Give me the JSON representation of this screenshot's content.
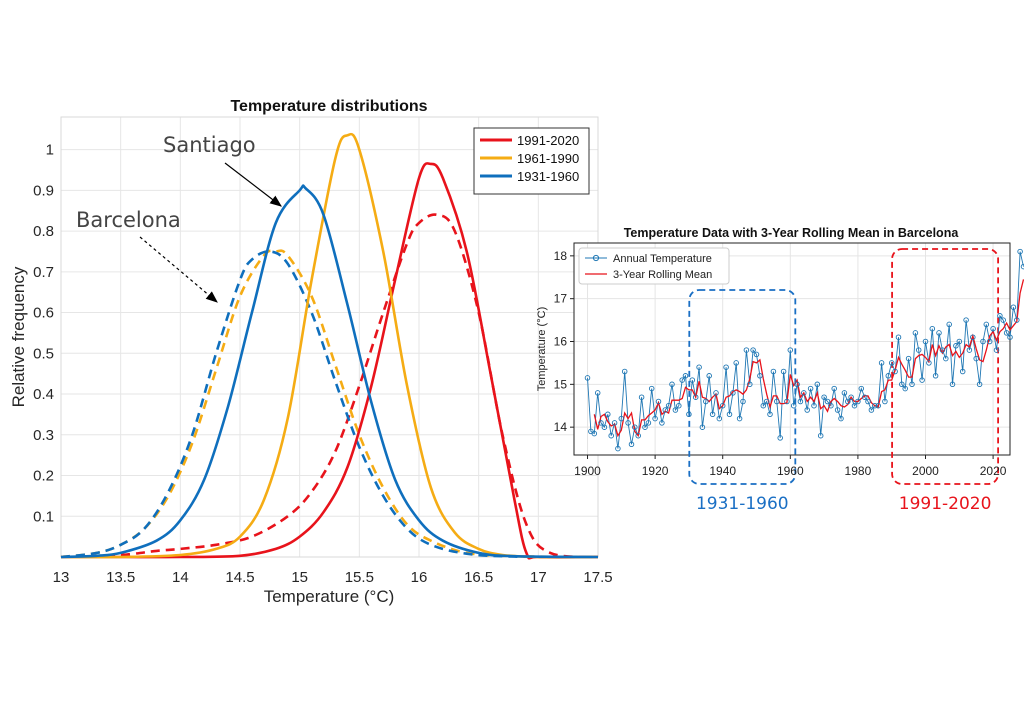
{
  "chart_data": [
    {
      "type": "line",
      "title": "Temperature distributions",
      "xlabel": "Temperature (°C)",
      "ylabel": "Relative frequency",
      "xlim": [
        13,
        17.5
      ],
      "ylim": [
        0,
        1.08
      ],
      "xticks": [
        "13",
        "13.5",
        "14",
        "14.5",
        "15",
        "15.5",
        "16",
        "16.5",
        "17",
        "17.5"
      ],
      "yticks": [
        "0.1",
        "0.2",
        "0.3",
        "0.4",
        "0.5",
        "0.6",
        "0.7",
        "0.8",
        "0.9",
        "1"
      ],
      "grid": true,
      "legend_position": "top-right",
      "legend": [
        "1991-2020",
        "1961-1990",
        "1931-1960"
      ],
      "colors": {
        "1991-2020": "#e8131b",
        "1961-1990": "#f5ac14",
        "1931-1960": "#0f6fbd"
      },
      "annotations": [
        {
          "text": "Santiago",
          "points_to": "solid curves"
        },
        {
          "text": "Barcelona",
          "points_to": "dashed curves"
        }
      ],
      "series": [
        {
          "name": "1991-2020",
          "city": "Santiago",
          "style": "solid",
          "x": [
            13.0,
            13.5,
            14.0,
            14.5,
            14.8,
            15.0,
            15.2,
            15.4,
            15.6,
            15.8,
            16.0,
            16.1,
            16.2,
            16.4,
            16.6,
            16.8,
            16.9,
            17.0,
            17.5
          ],
          "y": [
            0.0,
            0.0,
            0.0,
            0.003,
            0.02,
            0.05,
            0.11,
            0.22,
            0.42,
            0.68,
            0.93,
            0.965,
            0.93,
            0.75,
            0.45,
            0.14,
            0.01,
            0.0,
            0.0
          ]
        },
        {
          "name": "1961-1990",
          "city": "Santiago",
          "style": "solid",
          "x": [
            13.0,
            13.5,
            14.0,
            14.3,
            14.5,
            14.7,
            14.9,
            15.1,
            15.3,
            15.4,
            15.5,
            15.7,
            15.9,
            16.1,
            16.3,
            16.5,
            16.7,
            17.0,
            17.5
          ],
          "y": [
            0.0,
            0.0,
            0.005,
            0.02,
            0.05,
            0.14,
            0.34,
            0.68,
            0.98,
            1.035,
            1.0,
            0.75,
            0.42,
            0.17,
            0.06,
            0.02,
            0.005,
            0.0,
            0.0
          ]
        },
        {
          "name": "1931-1960",
          "city": "Santiago",
          "style": "solid",
          "x": [
            13.0,
            13.3,
            13.5,
            13.8,
            14.0,
            14.2,
            14.4,
            14.6,
            14.8,
            15.0,
            15.05,
            15.2,
            15.4,
            15.6,
            15.8,
            16.0,
            16.2,
            16.5,
            16.8,
            17.5
          ],
          "y": [
            0.0,
            0.003,
            0.01,
            0.04,
            0.09,
            0.19,
            0.37,
            0.6,
            0.82,
            0.9,
            0.905,
            0.84,
            0.62,
            0.38,
            0.19,
            0.09,
            0.04,
            0.01,
            0.002,
            0.0
          ]
        },
        {
          "name": "1991-2020",
          "city": "Barcelona",
          "style": "dashed",
          "x": [
            13.0,
            13.5,
            13.8,
            14.0,
            14.3,
            14.6,
            14.9,
            15.1,
            15.3,
            15.5,
            15.7,
            15.9,
            16.0,
            16.15,
            16.3,
            16.5,
            16.7,
            16.9,
            17.1,
            17.5
          ],
          "y": [
            0.0,
            0.005,
            0.015,
            0.02,
            0.03,
            0.05,
            0.1,
            0.16,
            0.26,
            0.42,
            0.6,
            0.77,
            0.82,
            0.84,
            0.8,
            0.6,
            0.3,
            0.08,
            0.01,
            0.0
          ]
        },
        {
          "name": "1961-1990",
          "city": "Barcelona",
          "style": "dashed",
          "x": [
            13.0,
            13.3,
            13.5,
            13.7,
            13.9,
            14.1,
            14.3,
            14.5,
            14.7,
            14.8,
            14.9,
            15.1,
            15.3,
            15.5,
            15.7,
            15.9,
            16.1,
            16.4,
            16.8,
            17.5
          ],
          "y": [
            0.0,
            0.01,
            0.03,
            0.07,
            0.15,
            0.28,
            0.46,
            0.64,
            0.74,
            0.75,
            0.74,
            0.64,
            0.47,
            0.3,
            0.17,
            0.08,
            0.04,
            0.01,
            0.002,
            0.0
          ]
        },
        {
          "name": "1931-1960",
          "city": "Barcelona",
          "style": "dashed",
          "x": [
            13.0,
            13.3,
            13.5,
            13.7,
            13.9,
            14.1,
            14.3,
            14.5,
            14.6,
            14.75,
            14.9,
            15.1,
            15.3,
            15.5,
            15.7,
            15.9,
            16.1,
            16.4,
            16.8,
            17.5
          ],
          "y": [
            0.0,
            0.01,
            0.03,
            0.07,
            0.16,
            0.3,
            0.5,
            0.68,
            0.73,
            0.75,
            0.72,
            0.6,
            0.43,
            0.27,
            0.15,
            0.07,
            0.03,
            0.008,
            0.001,
            0.0
          ]
        }
      ]
    },
    {
      "type": "line",
      "title": "Temperature Data with 3-Year Rolling Mean in Barcelona",
      "xlabel": "",
      "ylabel": "Temperature (°C)",
      "xlim": [
        1896,
        2025
      ],
      "ylim": [
        13.35,
        18.3
      ],
      "xticks": [
        "1900",
        "1920",
        "1940",
        "1960",
        "1980",
        "2000",
        "2020"
      ],
      "yticks": [
        "14",
        "15",
        "16",
        "17",
        "18"
      ],
      "grid": true,
      "legend_position": "top-left",
      "legend": [
        "Annual Temperature",
        "3-Year Rolling Mean"
      ],
      "colors": {
        "Annual Temperature": "#1f77b4",
        "3-Year Rolling Mean": "#e8131b",
        "highlight_1931_1960": "#1a6fc4",
        "highlight_1991_2020": "#e8131b"
      },
      "highlights": [
        {
          "label": "1931-1960",
          "from": 1931,
          "to": 1960
        },
        {
          "label": "1991-2020",
          "from": 1991,
          "to": 2020
        }
      ],
      "x_start": 1900,
      "series": [
        {
          "name": "Annual Temperature",
          "marker": "circle",
          "values": [
            15.15,
            13.9,
            13.85,
            14.8,
            14.1,
            14.0,
            14.3,
            13.8,
            14.1,
            13.5,
            14.2,
            15.3,
            14.1,
            13.6,
            14.0,
            13.8,
            14.7,
            14.0,
            14.1,
            14.9,
            14.2,
            14.6,
            14.1,
            14.4,
            14.5,
            15.0,
            14.4,
            14.5,
            15.1,
            15.2,
            14.3,
            15.1,
            14.7,
            15.4,
            14.0,
            14.6,
            15.2,
            14.3,
            14.8,
            14.2,
            14.5,
            15.4,
            14.3,
            14.8,
            15.5,
            14.2,
            14.6,
            15.8,
            15.0,
            15.8,
            15.7,
            15.2,
            14.5,
            14.6,
            14.3,
            15.3,
            14.6,
            13.75,
            15.3,
            14.6,
            15.8,
            14.5,
            15.0,
            14.6,
            14.8,
            14.4,
            14.9,
            14.5,
            15.0,
            13.8,
            14.7,
            14.6,
            14.5,
            14.9,
            14.4,
            14.2,
            14.8,
            14.6,
            14.7,
            14.5,
            14.6,
            14.9,
            14.7,
            14.6,
            14.4,
            14.5,
            14.5,
            15.5,
            14.6,
            15.2,
            15.5,
            15.3,
            16.1,
            15.0,
            14.9,
            15.6,
            15.0,
            16.2,
            15.8,
            15.1,
            16.0,
            15.5,
            16.3,
            15.2,
            16.2,
            15.8,
            15.6,
            16.4,
            15.0,
            15.9,
            16.0,
            15.3,
            16.5,
            15.8,
            16.1,
            15.6,
            15.0,
            16.0,
            16.4,
            16.0,
            16.3,
            15.8,
            16.6,
            16.5,
            16.2,
            16.1,
            16.8,
            16.5,
            18.1,
            17.75
          ]
        },
        {
          "name": "3-Year Rolling Mean",
          "x_start": 1902,
          "values": [
            14.3,
            13.95,
            14.25,
            14.3,
            14.13,
            14.03,
            14.07,
            13.8,
            13.93,
            14.33,
            14.2,
            14.33,
            13.9,
            13.8,
            14.17,
            14.17,
            14.27,
            14.33,
            14.4,
            14.57,
            14.3,
            14.37,
            14.33,
            14.63,
            14.63,
            14.63,
            14.67,
            14.93,
            14.87,
            14.87,
            14.7,
            15.07,
            14.7,
            14.67,
            14.6,
            14.7,
            14.77,
            14.43,
            14.5,
            14.7,
            14.73,
            14.83,
            14.87,
            14.83,
            14.77,
            14.87,
            15.13,
            15.53,
            15.5,
            15.57,
            15.13,
            14.77,
            14.47,
            14.73,
            14.73,
            14.55,
            14.55,
            14.57,
            15.23,
            14.97,
            15.1,
            14.7,
            14.8,
            14.6,
            14.7,
            14.6,
            14.8,
            14.43,
            14.5,
            14.37,
            14.6,
            14.67,
            14.6,
            14.5,
            14.47,
            14.53,
            14.7,
            14.6,
            14.6,
            14.67,
            14.73,
            14.73,
            14.57,
            14.5,
            14.47,
            14.83,
            14.87,
            15.1,
            15.1,
            15.33,
            15.63,
            15.47,
            15.33,
            15.17,
            15.17,
            15.6,
            15.67,
            15.7,
            15.63,
            15.53,
            15.93,
            15.67,
            15.9,
            15.73,
            15.87,
            15.93,
            15.67,
            15.77,
            15.63,
            15.73,
            15.93,
            15.87,
            16.13,
            15.83,
            15.57,
            15.53,
            15.8,
            16.13,
            16.23,
            16.03,
            16.23,
            16.3,
            16.43,
            16.27,
            16.37,
            16.47,
            17.13,
            17.45
          ]
        }
      ]
    }
  ]
}
